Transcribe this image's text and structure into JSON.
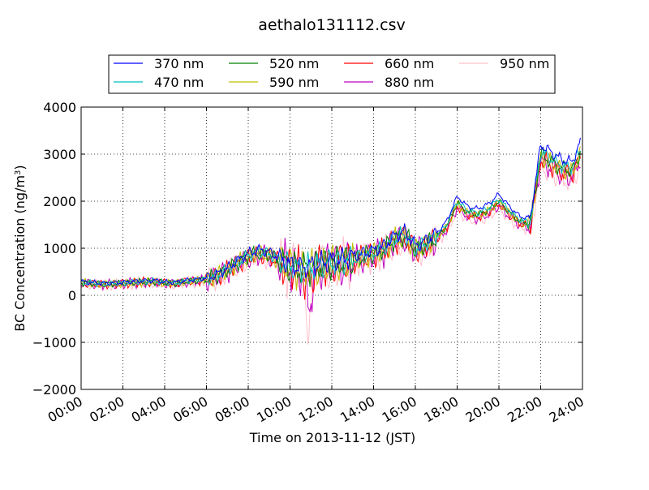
{
  "chart_data": {
    "type": "line",
    "title": "aethalo131112.csv",
    "xlabel": "Time on 2013-11-12 (JST)",
    "ylabel_main": "BC Concentration (ng/m",
    "ylabel_sup": "3",
    "ylabel_tail": ")",
    "xlim": [
      0,
      24
    ],
    "ylim": [
      -2000,
      4000
    ],
    "x_ticks": [
      0,
      2,
      4,
      6,
      8,
      10,
      12,
      14,
      16,
      18,
      20,
      22,
      24
    ],
    "x_tick_labels": [
      "00:00",
      "02:00",
      "04:00",
      "06:00",
      "08:00",
      "10:00",
      "12:00",
      "14:00",
      "16:00",
      "18:00",
      "20:00",
      "22:00",
      "24:00"
    ],
    "y_ticks": [
      -2000,
      -1000,
      0,
      1000,
      2000,
      3000,
      4000
    ],
    "y_tick_labels": [
      "−2000",
      "−1000",
      "0",
      "1000",
      "2000",
      "3000",
      "4000"
    ],
    "grid": true,
    "legend_position": "top",
    "series": [
      {
        "name": "370 nm",
        "color": "#0000ff"
      },
      {
        "name": "470 nm",
        "color": "#00bfbf"
      },
      {
        "name": "520 nm",
        "color": "#008000"
      },
      {
        "name": "590 nm",
        "color": "#bfbf00"
      },
      {
        "name": "660 nm",
        "color": "#ff0000"
      },
      {
        "name": "880 nm",
        "color": "#bf00bf"
      },
      {
        "name": "950 nm",
        "color": "#ffc0cb"
      }
    ],
    "x": [
      0,
      0.5,
      1,
      1.5,
      2,
      2.5,
      3,
      3.5,
      4,
      4.5,
      5,
      5.5,
      6,
      6.5,
      7,
      7.5,
      8,
      8.5,
      9,
      9.5,
      10,
      10.5,
      11,
      11.5,
      12,
      12.5,
      13,
      13.5,
      14,
      14.5,
      15,
      15.5,
      16,
      16.5,
      17,
      17.5,
      18,
      18.5,
      19,
      19.5,
      20,
      20.5,
      21,
      21.5,
      22,
      22.5,
      23,
      23.5,
      24
    ],
    "base_values": [
      280,
      260,
      240,
      250,
      260,
      280,
      290,
      300,
      270,
      260,
      300,
      320,
      350,
      420,
      550,
      700,
      850,
      920,
      880,
      750,
      620,
      560,
      600,
      650,
      700,
      720,
      780,
      850,
      900,
      1000,
      1200,
      1300,
      1000,
      1100,
      1250,
      1500,
      2000,
      1800,
      1750,
      1850,
      2050,
      1800,
      1600,
      1550,
      3050,
      2900,
      2750,
      2700,
      3200
    ],
    "wavelength_factors": [
      1.05,
      1.0,
      0.98,
      0.97,
      0.95,
      0.93,
      0.9
    ]
  }
}
